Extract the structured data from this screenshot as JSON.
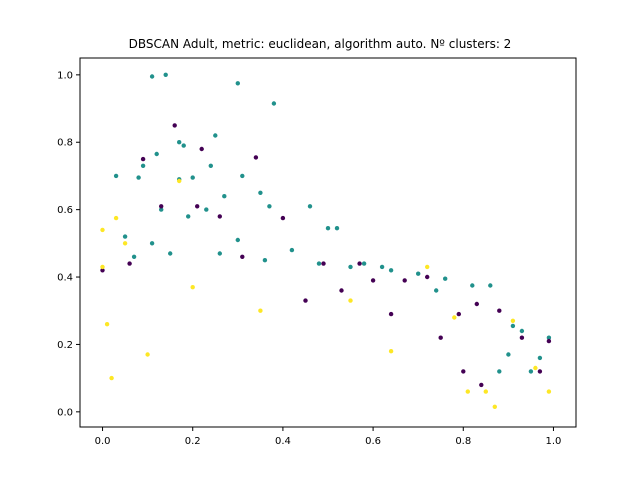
{
  "chart_data": {
    "type": "scatter",
    "title": "DBSCAN Adult, metric: euclidean, algorithm auto. Nº clusters: 2",
    "xlabel": "",
    "ylabel": "",
    "xlim": [
      -0.05,
      1.05
    ],
    "ylim": [
      -0.045,
      1.05
    ],
    "x_ticks": [
      0.0,
      0.2,
      0.4,
      0.6,
      0.8,
      1.0
    ],
    "x_tick_labels": [
      "0.0",
      "0.2",
      "0.4",
      "0.6",
      "0.8",
      "1.0"
    ],
    "y_ticks": [
      0.0,
      0.2,
      0.4,
      0.6,
      0.8,
      1.0
    ],
    "y_tick_labels": [
      "0.0",
      "0.2",
      "0.4",
      "0.6",
      "0.8",
      "1.0"
    ],
    "grid": false,
    "legend": "none",
    "series": [
      {
        "color": "#21918c",
        "points": [
          [
            0.11,
            0.995
          ],
          [
            0.14,
            1.0
          ],
          [
            0.3,
            0.975
          ],
          [
            0.38,
            0.915
          ],
          [
            0.18,
            0.79
          ],
          [
            0.25,
            0.82
          ],
          [
            0.17,
            0.8
          ],
          [
            0.09,
            0.73
          ],
          [
            0.12,
            0.765
          ],
          [
            0.24,
            0.73
          ],
          [
            0.2,
            0.695
          ],
          [
            0.31,
            0.7
          ],
          [
            0.27,
            0.64
          ],
          [
            0.35,
            0.65
          ],
          [
            0.03,
            0.7
          ],
          [
            0.08,
            0.695
          ],
          [
            0.17,
            0.69
          ],
          [
            0.46,
            0.61
          ],
          [
            0.37,
            0.61
          ],
          [
            0.13,
            0.6
          ],
          [
            0.19,
            0.58
          ],
          [
            0.23,
            0.6
          ],
          [
            0.5,
            0.545
          ],
          [
            0.52,
            0.545
          ],
          [
            0.05,
            0.52
          ],
          [
            0.11,
            0.5
          ],
          [
            0.3,
            0.51
          ],
          [
            0.42,
            0.48
          ],
          [
            0.58,
            0.44
          ],
          [
            0.62,
            0.43
          ],
          [
            0.7,
            0.41
          ],
          [
            0.76,
            0.395
          ],
          [
            0.82,
            0.375
          ],
          [
            0.86,
            0.375
          ],
          [
            0.74,
            0.36
          ],
          [
            0.64,
            0.42
          ],
          [
            0.55,
            0.43
          ],
          [
            0.48,
            0.44
          ],
          [
            0.36,
            0.45
          ],
          [
            0.26,
            0.47
          ],
          [
            0.15,
            0.47
          ],
          [
            0.07,
            0.46
          ],
          [
            0.91,
            0.255
          ],
          [
            0.93,
            0.24
          ],
          [
            0.97,
            0.16
          ],
          [
            0.99,
            0.22
          ],
          [
            0.95,
            0.12
          ],
          [
            0.9,
            0.17
          ],
          [
            0.88,
            0.12
          ]
        ]
      },
      {
        "color": "#440154",
        "points": [
          [
            0.16,
            0.85
          ],
          [
            0.09,
            0.75
          ],
          [
            0.34,
            0.755
          ],
          [
            0.22,
            0.78
          ],
          [
            0.13,
            0.61
          ],
          [
            0.21,
            0.61
          ],
          [
            0.4,
            0.575
          ],
          [
            0.26,
            0.58
          ],
          [
            0.57,
            0.44
          ],
          [
            0.49,
            0.44
          ],
          [
            0.6,
            0.39
          ],
          [
            0.72,
            0.4
          ],
          [
            0.67,
            0.39
          ],
          [
            0.79,
            0.29
          ],
          [
            0.83,
            0.32
          ],
          [
            0.88,
            0.3
          ],
          [
            0.93,
            0.22
          ],
          [
            0.99,
            0.21
          ],
          [
            0.97,
            0.12
          ],
          [
            0.84,
            0.08
          ],
          [
            0.0,
            0.42
          ],
          [
            0.06,
            0.44
          ],
          [
            0.31,
            0.46
          ],
          [
            0.45,
            0.33
          ],
          [
            0.53,
            0.36
          ],
          [
            0.64,
            0.29
          ],
          [
            0.75,
            0.22
          ],
          [
            0.8,
            0.12
          ]
        ]
      },
      {
        "color": "#fde725",
        "points": [
          [
            0.0,
            0.54
          ],
          [
            0.03,
            0.575
          ],
          [
            0.17,
            0.685
          ],
          [
            0.05,
            0.5
          ],
          [
            0.0,
            0.43
          ],
          [
            0.72,
            0.43
          ],
          [
            0.78,
            0.28
          ],
          [
            0.91,
            0.27
          ],
          [
            0.96,
            0.13
          ],
          [
            0.99,
            0.06
          ],
          [
            0.85,
            0.06
          ],
          [
            0.87,
            0.015
          ],
          [
            0.81,
            0.06
          ],
          [
            0.64,
            0.18
          ],
          [
            0.55,
            0.33
          ],
          [
            0.35,
            0.3
          ],
          [
            0.2,
            0.37
          ],
          [
            0.1,
            0.17
          ],
          [
            0.02,
            0.1
          ],
          [
            0.01,
            0.26
          ]
        ]
      }
    ]
  }
}
